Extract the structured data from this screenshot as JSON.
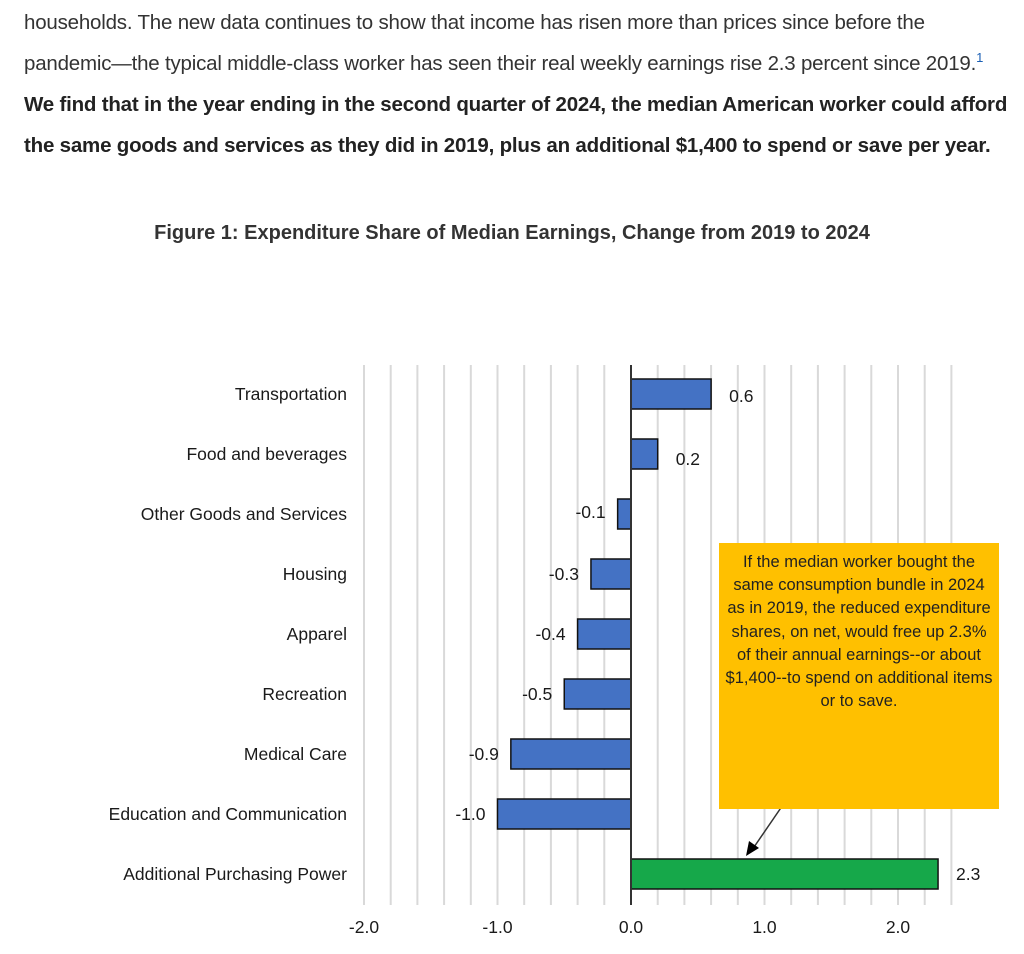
{
  "document": {
    "paragraph": {
      "plain_1": "households.  The new data continues to show that income has risen more than prices since before the pandemic—the typical middle-class worker has seen their real weekly earnings rise 2.3 percent since 2019.",
      "footnote_ref": "1",
      "bold": "We find that in the year ending in the second quarter of 2024, the median American worker could afford the same goods and services as they did in 2019, plus an additional $1,400 to spend or save per year."
    },
    "figure_title": "Figure 1: Expenditure Share of Median Earnings, Change from 2019 to 2024"
  },
  "chart_data": {
    "type": "bar",
    "orientation": "horizontal",
    "title": "Figure 1: Expenditure Share of Median Earnings, Change from 2019 to 2024",
    "xlabel": "",
    "ylabel": "",
    "categories": [
      "Transportation",
      "Food and beverages",
      "Other Goods and Services",
      "Housing",
      "Apparel",
      "Recreation",
      "Medical Care",
      "Education and Communication",
      "Additional Purchasing Power"
    ],
    "values": [
      0.6,
      0.2,
      -0.1,
      -0.3,
      -0.4,
      -0.5,
      -0.9,
      -1.0,
      2.3
    ],
    "data_labels": [
      "0.6",
      "0.2",
      "-0.1",
      "-0.3",
      "-0.4",
      "-0.5",
      "-0.9",
      "-1.0",
      "2.3"
    ],
    "bar_colors": [
      "#4472c4",
      "#4472c4",
      "#4472c4",
      "#4472c4",
      "#4472c4",
      "#4472c4",
      "#4472c4",
      "#4472c4",
      "#16a84a"
    ],
    "xlim": [
      -2.0,
      2.4
    ],
    "x_ticks": [
      -2.0,
      -1.0,
      0.0,
      1.0,
      2.0
    ],
    "x_tick_labels": [
      "-2.0",
      "-1.0",
      "0.0",
      "1.0",
      "2.0"
    ],
    "minor_grid_step": 0.2,
    "grid": true,
    "legend": "none",
    "annotation": {
      "text": "If the median worker bought the same consumption bundle in 2024 as in 2019, the reduced expenditure shares, on net, would free up 2.3% of their annual earnings--or about $1,400--to spend on additional items or to save.",
      "background": "#ffc000",
      "points_to": "Additional Purchasing Power"
    }
  }
}
